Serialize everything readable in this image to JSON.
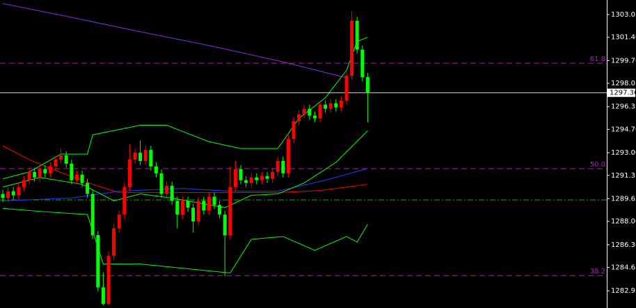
{
  "chart_data": {
    "type": "candlestick",
    "ylim": [
      1281.7,
      1304.11
    ],
    "yticks": [
      1303.05,
      {
        "value": 1301.4,
        "label": "1301.40"
      },
      {
        "value": 1299.7,
        "label": "1299.70"
      },
      1298.05,
      1296.35,
      {
        "value": 1294.7,
        "label": "1294.70"
      },
      {
        "value": 1293.0,
        "label": "1293.00"
      },
      1291.35,
      1289.65,
      {
        "value": 1288.0,
        "label": "1288.00"
      },
      {
        "value": 1286.3,
        "label": "1286.30"
      },
      1284.65,
      1282.95
    ],
    "bull_color": "#ff0000",
    "bear_color": "#00ff00",
    "open": [
      1290.0,
      1289.7,
      1290.2,
      1289.9,
      1290.5,
      1291.0,
      1291.6,
      1291.2,
      1291.8,
      1291.5,
      1292.0,
      1292.5,
      1292.8,
      1292.2,
      1291.0,
      1291.4,
      1290.8,
      1290.0,
      1287.0,
      1283.2,
      1282.0,
      1285.5,
      1287.5,
      1288.5,
      1290.5,
      1292.5,
      1293.0,
      1292.4,
      1293.2,
      1292.0,
      1291.5,
      1290.0,
      1290.6,
      1289.5,
      1288.5,
      1289.5,
      1289.0,
      1288.0,
      1289.5,
      1288.8,
      1289.8,
      1289.2,
      1288.5,
      1287.0,
      1290.5,
      1291.8,
      1291.0,
      1290.8,
      1291.2,
      1291.0,
      1291.3,
      1291.1,
      1291.6,
      1292.4,
      1291.5,
      1294.0,
      1295.3,
      1295.8,
      1296.2,
      1295.7,
      1295.5,
      1296.5,
      1296.2,
      1296.6,
      1296.3,
      1296.8,
      1298.6,
      1302.6,
      1300.5,
      1298.5
    ],
    "high": [
      1290.3,
      1290.5,
      1290.5,
      1290.8,
      1291.3,
      1291.9,
      1291.9,
      1292.1,
      1292.1,
      1292.3,
      1292.8,
      1293.3,
      1293.1,
      1292.5,
      1291.7,
      1291.7,
      1291.1,
      1290.3,
      1287.3,
      1284.3,
      1285.8,
      1287.8,
      1288.8,
      1290.8,
      1293.6,
      1293.3,
      1293.9,
      1293.5,
      1293.5,
      1292.3,
      1291.8,
      1290.9,
      1290.9,
      1289.8,
      1289.8,
      1289.8,
      1289.3,
      1289.8,
      1289.8,
      1290.1,
      1290.1,
      1289.5,
      1288.8,
      1292.0,
      1292.4,
      1292.1,
      1291.3,
      1291.5,
      1291.5,
      1291.6,
      1291.6,
      1291.9,
      1292.7,
      1292.7,
      1294.3,
      1295.6,
      1296.1,
      1296.5,
      1296.5,
      1296.0,
      1296.8,
      1296.8,
      1296.9,
      1296.9,
      1297.1,
      1298.9,
      1303.3,
      1302.9,
      1300.8,
      1298.8
    ],
    "low": [
      1289.4,
      1289.4,
      1289.6,
      1289.6,
      1290.2,
      1290.7,
      1290.9,
      1290.9,
      1291.2,
      1291.2,
      1291.7,
      1292.2,
      1291.9,
      1290.7,
      1290.7,
      1290.5,
      1289.7,
      1286.7,
      1282.9,
      1281.9,
      1281.9,
      1285.2,
      1287.2,
      1288.2,
      1290.2,
      1292.2,
      1292.1,
      1292.1,
      1291.7,
      1291.2,
      1289.7,
      1289.7,
      1289.2,
      1287.5,
      1288.2,
      1288.7,
      1287.2,
      1287.7,
      1288.5,
      1288.5,
      1288.9,
      1288.2,
      1284.0,
      1286.7,
      1290.2,
      1290.7,
      1290.5,
      1290.5,
      1290.7,
      1290.7,
      1290.8,
      1290.8,
      1291.3,
      1291.2,
      1291.2,
      1293.7,
      1295.0,
      1295.5,
      1295.4,
      1295.2,
      1295.2,
      1295.9,
      1295.9,
      1296.0,
      1296.0,
      1296.5,
      1298.3,
      1300.2,
      1298.2,
      1295.2
    ],
    "close": [
      1289.7,
      1290.2,
      1289.9,
      1290.5,
      1291.0,
      1291.6,
      1291.2,
      1291.8,
      1291.5,
      1292.0,
      1292.5,
      1292.8,
      1292.2,
      1291.0,
      1291.4,
      1290.8,
      1290.0,
      1287.0,
      1283.2,
      1282.0,
      1285.5,
      1287.5,
      1288.5,
      1290.5,
      1292.5,
      1293.0,
      1292.4,
      1293.2,
      1292.0,
      1291.5,
      1290.0,
      1290.6,
      1289.5,
      1288.5,
      1289.5,
      1289.0,
      1288.0,
      1289.5,
      1288.8,
      1289.8,
      1289.2,
      1288.5,
      1287.0,
      1290.5,
      1291.8,
      1291.0,
      1290.8,
      1291.2,
      1291.0,
      1291.3,
      1291.1,
      1291.6,
      1292.4,
      1291.5,
      1294.0,
      1295.3,
      1295.8,
      1296.2,
      1295.7,
      1295.5,
      1296.5,
      1296.2,
      1296.6,
      1296.3,
      1296.8,
      1298.6,
      1302.6,
      1300.5,
      1298.5,
      1297.36
    ],
    "lines": [
      {
        "color": "#8a2be2",
        "x": [
          0,
          13,
          26,
          39,
          52,
          65
        ],
        "values": [
          1303.85,
          1302.85,
          1301.8,
          1300.8,
          1299.7,
          1298.45
        ]
      },
      {
        "color": "#ff0000",
        "x": [
          0,
          5,
          10,
          17,
          22,
          32,
          43,
          52,
          60,
          69
        ],
        "values": [
          1293.5,
          1292.5,
          1291.7,
          1290.7,
          1290.1,
          1290.1,
          1290.1,
          1290.1,
          1290.25,
          1290.7
        ]
      },
      {
        "color": "#1e3cff",
        "x": [
          0,
          13,
          22,
          34,
          43,
          52,
          61,
          69
        ],
        "values": [
          1289.5,
          1289.7,
          1290.2,
          1290.4,
          1290.2,
          1290.2,
          1291.0,
          1291.85
        ]
      },
      {
        "color": "#00ff00",
        "x": [
          0,
          5,
          11,
          16,
          17,
          26,
          31,
          39,
          45,
          52,
          56,
          61,
          65,
          67,
          69
        ],
        "values": [
          1291.1,
          1291.6,
          1292.9,
          1292.9,
          1294.3,
          1295.0,
          1295.0,
          1293.8,
          1293.3,
          1293.3,
          1295.5,
          1297.0,
          1299.0,
          1301.1,
          1301.4
        ]
      },
      {
        "color": "#00ff00",
        "x": [
          0,
          7,
          15,
          21,
          26,
          32,
          42,
          47,
          52,
          57,
          63,
          69
        ],
        "values": [
          1290.5,
          1291.2,
          1290.7,
          1289.5,
          1290.0,
          1289.7,
          1289.0,
          1289.9,
          1290.0,
          1290.8,
          1292.3,
          1294.6
        ]
      },
      {
        "color": "#00ff00",
        "x": [
          0,
          8,
          16,
          19,
          26,
          43,
          47,
          53,
          59,
          65,
          67,
          69
        ],
        "values": [
          1288.95,
          1288.7,
          1288.5,
          1284.9,
          1284.9,
          1284.25,
          1286.7,
          1286.9,
          1285.9,
          1286.9,
          1286.5,
          1287.8
        ]
      }
    ],
    "levels": [
      {
        "value": 1299.51,
        "label": "61.8",
        "color": "#d400d4",
        "dash": "8 5"
      },
      {
        "value": 1291.84,
        "label": "50.0",
        "color": "#d400d4",
        "dash": "8 5"
      },
      {
        "value": 1284.06,
        "label": "38.2",
        "color": "#d400d4",
        "dash": "8 5"
      },
      {
        "value": 1289.57,
        "color": "#1fa01f",
        "dash": "8 3 2 3"
      }
    ],
    "current_price": 1297.36
  }
}
